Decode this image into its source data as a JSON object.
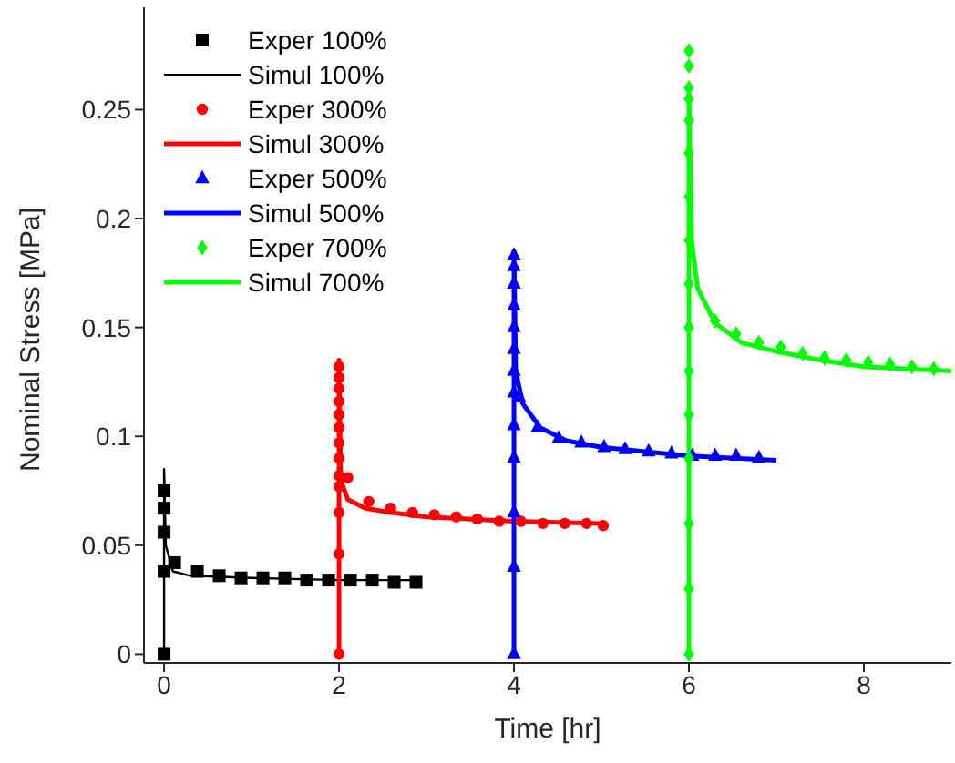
{
  "chart_data": {
    "type": "scatter",
    "xlabel": "Time [hr]",
    "ylabel": "Nominal Stress [MPa]",
    "xlim": [
      -0.23,
      9
    ],
    "ylim": [
      -0.004,
      0.297
    ],
    "xticks": [
      0,
      2,
      4,
      6,
      8
    ],
    "yticks": [
      0,
      0.05,
      0.1,
      0.15,
      0.2,
      0.25
    ],
    "grid": false,
    "legend": "top left",
    "series": [
      {
        "name": "Exper 100%",
        "marker": "square",
        "color": "#000000",
        "x": [
          0,
          0,
          0,
          0,
          0,
          0.12,
          0.38,
          0.63,
          0.88,
          1.13,
          1.38,
          1.63,
          1.88,
          2.13,
          2.38,
          2.63,
          2.88
        ],
        "values": [
          0,
          0.038,
          0.056,
          0.067,
          0.075,
          0.042,
          0.038,
          0.036,
          0.035,
          0.035,
          0.035,
          0.034,
          0.034,
          0.034,
          0.034,
          0.033,
          0.033
        ]
      },
      {
        "name": "Simul 100%",
        "type": "line",
        "color": "#000000",
        "x": [
          0,
          0,
          0.02,
          0.1,
          0.3,
          1,
          2,
          2.9
        ],
        "values": [
          0,
          0.085,
          0.05,
          0.038,
          0.036,
          0.035,
          0.034,
          0.034
        ]
      },
      {
        "name": "Exper 300%",
        "marker": "circle",
        "color": "#ff0000",
        "x": [
          2,
          2,
          2,
          2,
          2,
          2,
          2,
          2,
          2,
          2,
          2,
          2,
          2,
          2.1,
          2.34,
          2.59,
          2.84,
          3.09,
          3.34,
          3.58,
          3.83,
          4.08,
          4.33,
          4.58,
          4.83,
          5.02
        ],
        "values": [
          0,
          0.046,
          0.065,
          0.077,
          0.082,
          0.09,
          0.097,
          0.104,
          0.11,
          0.116,
          0.122,
          0.127,
          0.132,
          0.081,
          0.07,
          0.067,
          0.065,
          0.064,
          0.063,
          0.062,
          0.061,
          0.061,
          0.06,
          0.06,
          0.06,
          0.059
        ]
      },
      {
        "name": "Simul 300%",
        "type": "line",
        "color": "#ff0000",
        "x": [
          2,
          2,
          2.02,
          2.1,
          2.3,
          2.6,
          3,
          4,
          5
        ],
        "values": [
          0,
          0.135,
          0.08,
          0.071,
          0.067,
          0.065,
          0.063,
          0.061,
          0.06
        ]
      },
      {
        "name": "Exper 500%",
        "marker": "triangle",
        "color": "#0000ff",
        "x": [
          4,
          4,
          4,
          4,
          4,
          4,
          4,
          4,
          4,
          4,
          4,
          4,
          4,
          4.06,
          4.27,
          4.51,
          4.77,
          5.03,
          5.27,
          5.54,
          5.8,
          6.04,
          6.3,
          6.54,
          6.8
        ],
        "values": [
          0,
          0.04,
          0.065,
          0.09,
          0.105,
          0.12,
          0.13,
          0.14,
          0.15,
          0.16,
          0.17,
          0.178,
          0.183,
          0.118,
          0.104,
          0.099,
          0.097,
          0.095,
          0.094,
          0.093,
          0.092,
          0.091,
          0.091,
          0.091,
          0.09
        ]
      },
      {
        "name": "Simul 500%",
        "type": "line",
        "color": "#0000ff",
        "x": [
          4,
          4,
          4.02,
          4.1,
          4.3,
          4.6,
          5,
          5.5,
          6,
          7
        ],
        "values": [
          0,
          0.185,
          0.13,
          0.115,
          0.104,
          0.098,
          0.095,
          0.093,
          0.091,
          0.089
        ]
      },
      {
        "name": "Exper 700%",
        "marker": "diamond",
        "color": "#00ff00",
        "x": [
          6,
          6,
          6,
          6,
          6,
          6,
          6,
          6,
          6,
          6,
          6,
          6,
          6,
          6,
          6,
          6,
          6.3,
          6.54,
          6.8,
          7.05,
          7.3,
          7.55,
          7.8,
          8.05,
          8.3,
          8.55,
          8.8
        ],
        "values": [
          0,
          0.03,
          0.06,
          0.09,
          0.11,
          0.13,
          0.15,
          0.17,
          0.19,
          0.21,
          0.23,
          0.245,
          0.255,
          0.26,
          0.27,
          0.277,
          0.153,
          0.147,
          0.143,
          0.141,
          0.138,
          0.136,
          0.135,
          0.134,
          0.133,
          0.132,
          0.131
        ]
      },
      {
        "name": "Simul 700%",
        "type": "line",
        "color": "#00ff00",
        "x": [
          6,
          6,
          6.03,
          6.1,
          6.3,
          6.6,
          7,
          7.5,
          8,
          9
        ],
        "values": [
          0,
          0.26,
          0.19,
          0.168,
          0.152,
          0.143,
          0.139,
          0.135,
          0.132,
          0.13
        ]
      }
    ]
  }
}
